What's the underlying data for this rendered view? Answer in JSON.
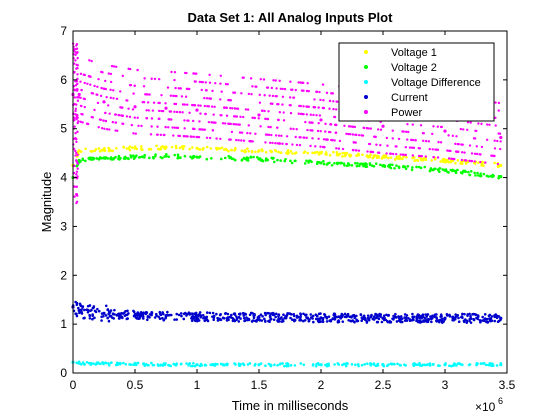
{
  "chart_data": {
    "type": "scatter",
    "title": "Data Set 1: All Analog Inputs Plot",
    "xlabel": "Time in milliseconds",
    "ylabel": "Magnitude",
    "x_exponent_label": "×10",
    "x_exponent_power": "6",
    "xlim": [
      0,
      3.5
    ],
    "ylim": [
      0,
      7
    ],
    "x_ticks": [
      0,
      0.5,
      1,
      1.5,
      2,
      2.5,
      3,
      3.5
    ],
    "x_tick_labels": [
      "0",
      "0.5",
      "1",
      "1.5",
      "2",
      "2.5",
      "3",
      "3.5"
    ],
    "y_ticks": [
      0,
      1,
      2,
      3,
      4,
      5,
      6,
      7
    ],
    "y_tick_labels": [
      "0",
      "1",
      "2",
      "3",
      "4",
      "5",
      "6",
      "7"
    ],
    "grid": false,
    "legend_position": "top-right",
    "series": [
      {
        "name": "Voltage 1",
        "color": "#ffff00",
        "x": [
          0.0,
          0.05,
          0.25,
          0.5,
          0.75,
          1.0,
          1.5,
          2.0,
          2.5,
          3.0,
          3.45
        ],
        "y": [
          4.25,
          4.55,
          4.58,
          4.6,
          4.62,
          4.6,
          4.55,
          4.5,
          4.42,
          4.35,
          4.25
        ]
      },
      {
        "name": "Voltage 2",
        "color": "#00ff00",
        "x": [
          0.0,
          0.05,
          0.25,
          0.5,
          0.75,
          1.0,
          1.5,
          2.0,
          2.5,
          3.0,
          3.45
        ],
        "y": [
          4.0,
          4.35,
          4.4,
          4.42,
          4.44,
          4.42,
          4.38,
          4.3,
          4.24,
          4.15,
          4.02
        ]
      },
      {
        "name": "Voltage Difference",
        "color": "#00ffff",
        "x": [
          0.0,
          0.05,
          0.5,
          1.0,
          1.5,
          2.0,
          2.5,
          3.0,
          3.45
        ],
        "y": [
          0.22,
          0.2,
          0.18,
          0.17,
          0.17,
          0.17,
          0.17,
          0.17,
          0.17
        ]
      },
      {
        "name": "Current",
        "color": "#0000cc",
        "x": [
          0.0,
          0.05,
          0.25,
          0.5,
          1.0,
          1.5,
          2.0,
          2.5,
          3.0,
          3.45
        ],
        "y": [
          1.35,
          1.28,
          1.22,
          1.18,
          1.15,
          1.14,
          1.13,
          1.12,
          1.12,
          1.12
        ]
      },
      {
        "name": "Power",
        "color": "#ff00ff",
        "x": [
          0.0,
          0.05,
          0.25,
          0.5,
          0.75,
          1.0,
          1.5,
          2.0,
          2.5,
          3.0,
          3.45
        ],
        "y": [
          5.7,
          5.7,
          5.55,
          5.45,
          5.42,
          5.38,
          5.28,
          5.18,
          5.05,
          4.95,
          4.82
        ]
      }
    ]
  }
}
